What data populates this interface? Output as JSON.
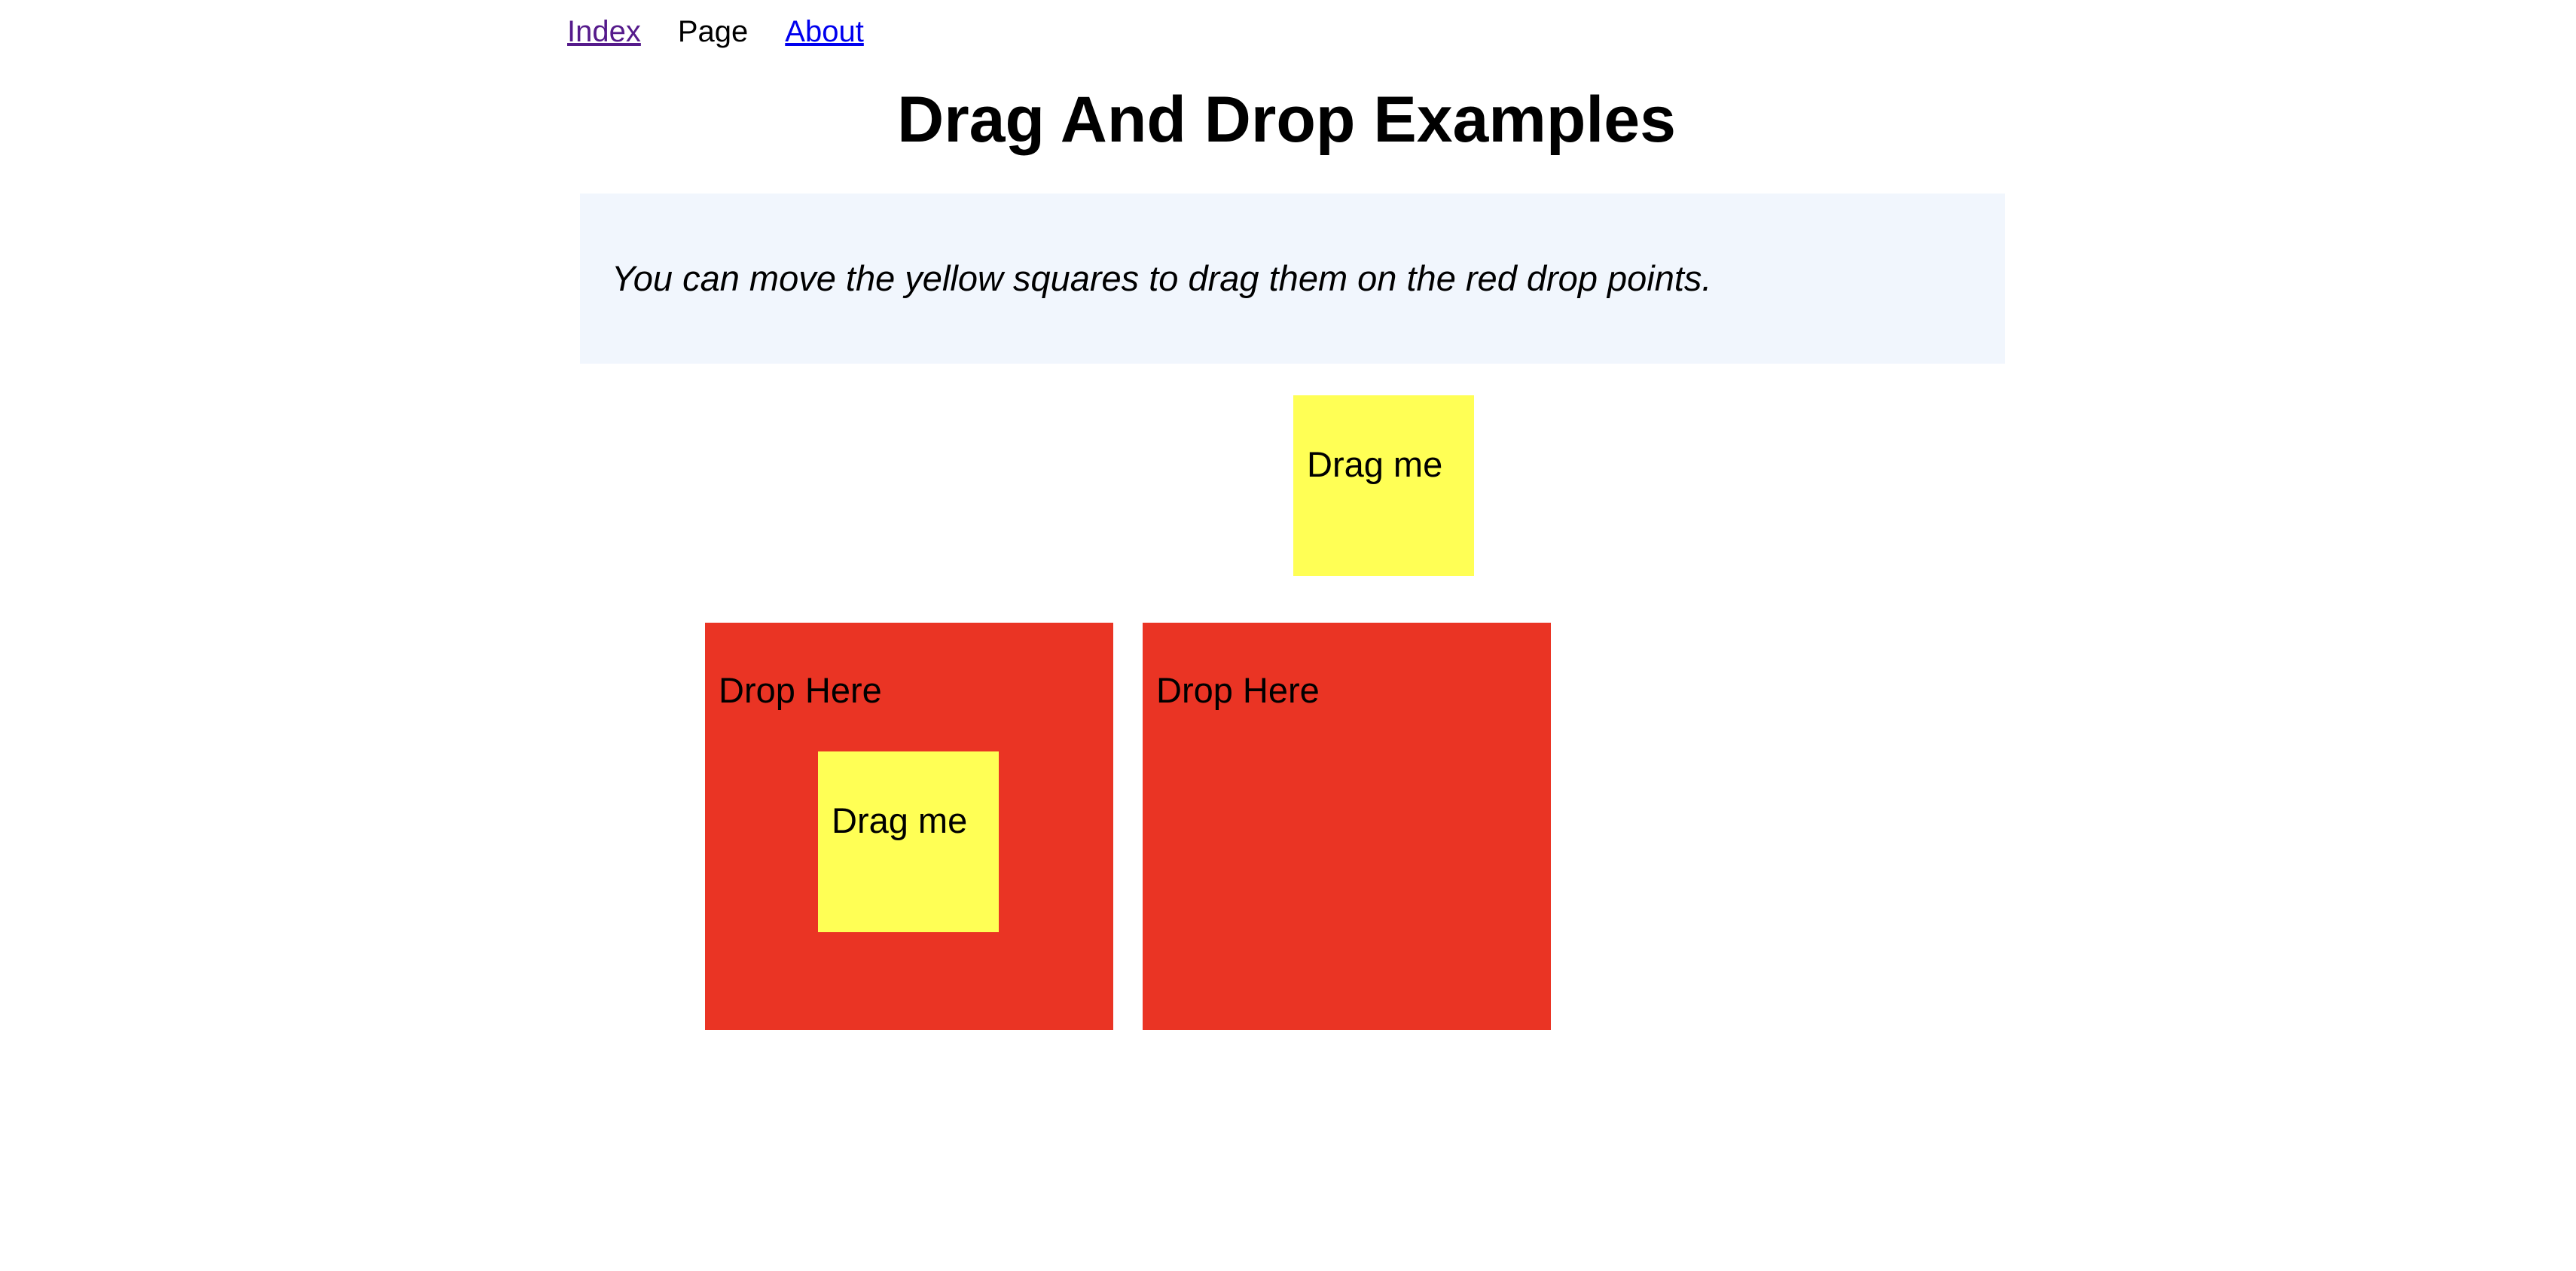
{
  "nav": {
    "items": [
      {
        "label": "Index",
        "state": "visited-link"
      },
      {
        "label": "Page",
        "state": "current"
      },
      {
        "label": "About",
        "state": "link"
      }
    ]
  },
  "page_title": "Drag And Drop Examples",
  "notice": {
    "text": "You can move the yellow squares to drag them on the red drop points."
  },
  "draggables": [
    {
      "label": "Drag me",
      "location": "free"
    },
    {
      "label": "Drag me",
      "location": "drop-zone-1"
    }
  ],
  "drop_zones": [
    {
      "label": "Drop Here"
    },
    {
      "label": "Drop Here"
    }
  ],
  "colors": {
    "draggable": "#ffff55",
    "drop_zone": "#ea3424",
    "notice_background": "#f1f6fd",
    "visited_link": "#551a8b",
    "link": "#0000ee"
  }
}
